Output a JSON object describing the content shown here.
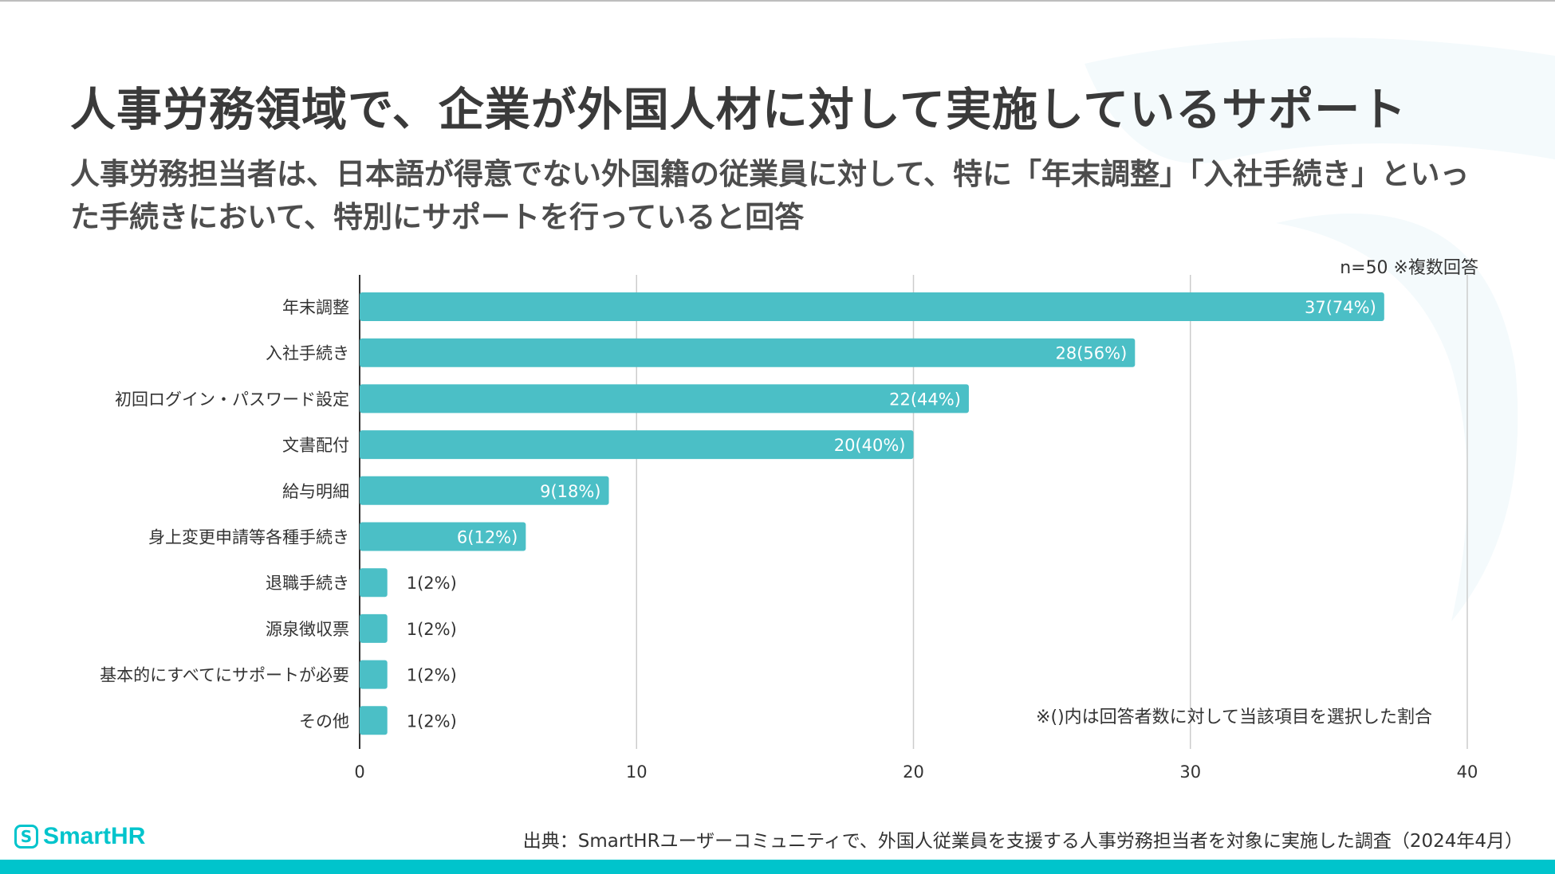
{
  "title": "人事労務領域で、企業が外国人材に対して実施しているサポート",
  "subtitle": "人事労務担当者は、日本語が得意でない外国籍の従業員に対して、特に「年末調整」「入社手続き」といった手続きにおいて、特別にサポートを行っていると回答",
  "sample_note": "n=50 ※複数回答",
  "ratio_note": "※()内は回答者数に対して当該項目を選択した割合",
  "source": "出典：SmartHRユーザーコミュニティで、外国人従業員を支援する人事労務担当者を対象に実施した調査（2024年4月）",
  "brand": {
    "name": "SmartHR",
    "mark": "S"
  },
  "colors": {
    "bar": "#4bbfc6",
    "accent": "#00c4cc",
    "grid": "#cccccc",
    "axis": "#333333"
  },
  "chart_data": {
    "type": "bar",
    "orientation": "horizontal",
    "categories": [
      "年末調整",
      "入社手続き",
      "初回ログイン・パスワード設定",
      "文書配付",
      "給与明細",
      "身上変更申請等各種手続き",
      "退職手続き",
      "源泉徴収票",
      "基本的にすべてにサポートが必要",
      "その他"
    ],
    "values": [
      37,
      28,
      22,
      20,
      9,
      6,
      1,
      1,
      1,
      1
    ],
    "data_labels": [
      "37(74%)",
      "28(56%)",
      "22(44%)",
      "20(40%)",
      "9(18%)",
      "6(12%)",
      "1(2%)",
      "1(2%)",
      "1(2%)",
      "1(2%)"
    ],
    "xlim": [
      0,
      40
    ],
    "xticks": [
      0,
      10,
      20,
      30,
      40
    ],
    "xtick_labels": [
      "0",
      "10",
      "20",
      "30",
      "40"
    ],
    "grid": true
  }
}
